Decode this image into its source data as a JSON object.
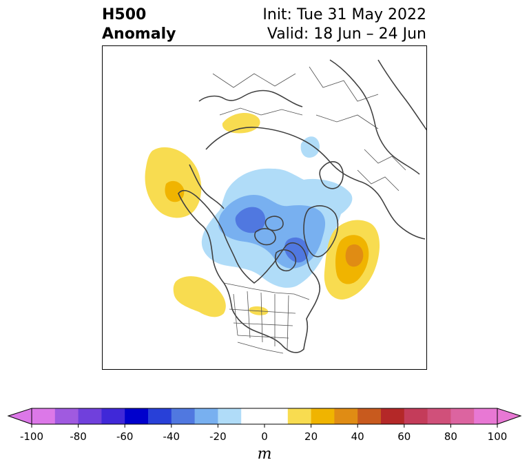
{
  "title": {
    "left_line1": "H500",
    "left_line2": "Anomaly",
    "right_line1": "Init: Tue 31 May 2022",
    "right_line2": "Valid: 18 Jun – 24 Jun"
  },
  "map": {
    "projection": "north-polar-stereographic",
    "region": "Northern Hemisphere (North America, Arctic, Eurasia)",
    "anomaly_features": [
      {
        "sign": "positive",
        "max_bin": "20-30",
        "area": "NE Pacific off Alaska / British Columbia"
      },
      {
        "sign": "positive",
        "max_bin": "10-20",
        "area": "Northern Eurasia"
      },
      {
        "sign": "positive",
        "max_bin": "30-40",
        "area": "North Atlantic east of Newfoundland"
      },
      {
        "sign": "positive",
        "max_bin": "10-20",
        "area": "Western United States / eastern Pacific"
      },
      {
        "sign": "positive",
        "max_bin": "10-20",
        "area": "Central United States"
      },
      {
        "sign": "negative",
        "min_bin": "-40 to -30",
        "area": "Arctic Ocean / Canadian Arctic"
      },
      {
        "sign": "negative",
        "min_bin": "-40 to -30",
        "area": "Hudson Bay / Baffin region"
      },
      {
        "sign": "negative",
        "min_bin": "-20 to -10",
        "area": "Barents / Kara Seas"
      }
    ]
  },
  "colorbar": {
    "unit": "m",
    "min": -100,
    "max": 100,
    "step": 10,
    "extend": "both",
    "tick_labels": [
      "-100",
      "-80",
      "-60",
      "-40",
      "-20",
      "0",
      "20",
      "40",
      "60",
      "80",
      "100"
    ],
    "colors": [
      "#dc78e8",
      "#a05ae0",
      "#7040dc",
      "#4028d8",
      "#0000cc",
      "#2840d8",
      "#5078e0",
      "#78b0f0",
      "#b0dcf8",
      "#ffffff",
      "#ffffff",
      "#f8dc50",
      "#f0b400",
      "#e08c14",
      "#c85a1e",
      "#b42828",
      "#c43c5a",
      "#d0507a",
      "#dc64a0",
      "#e878d4"
    ],
    "under_color": "#dc78e8",
    "over_color": "#e878d4"
  }
}
